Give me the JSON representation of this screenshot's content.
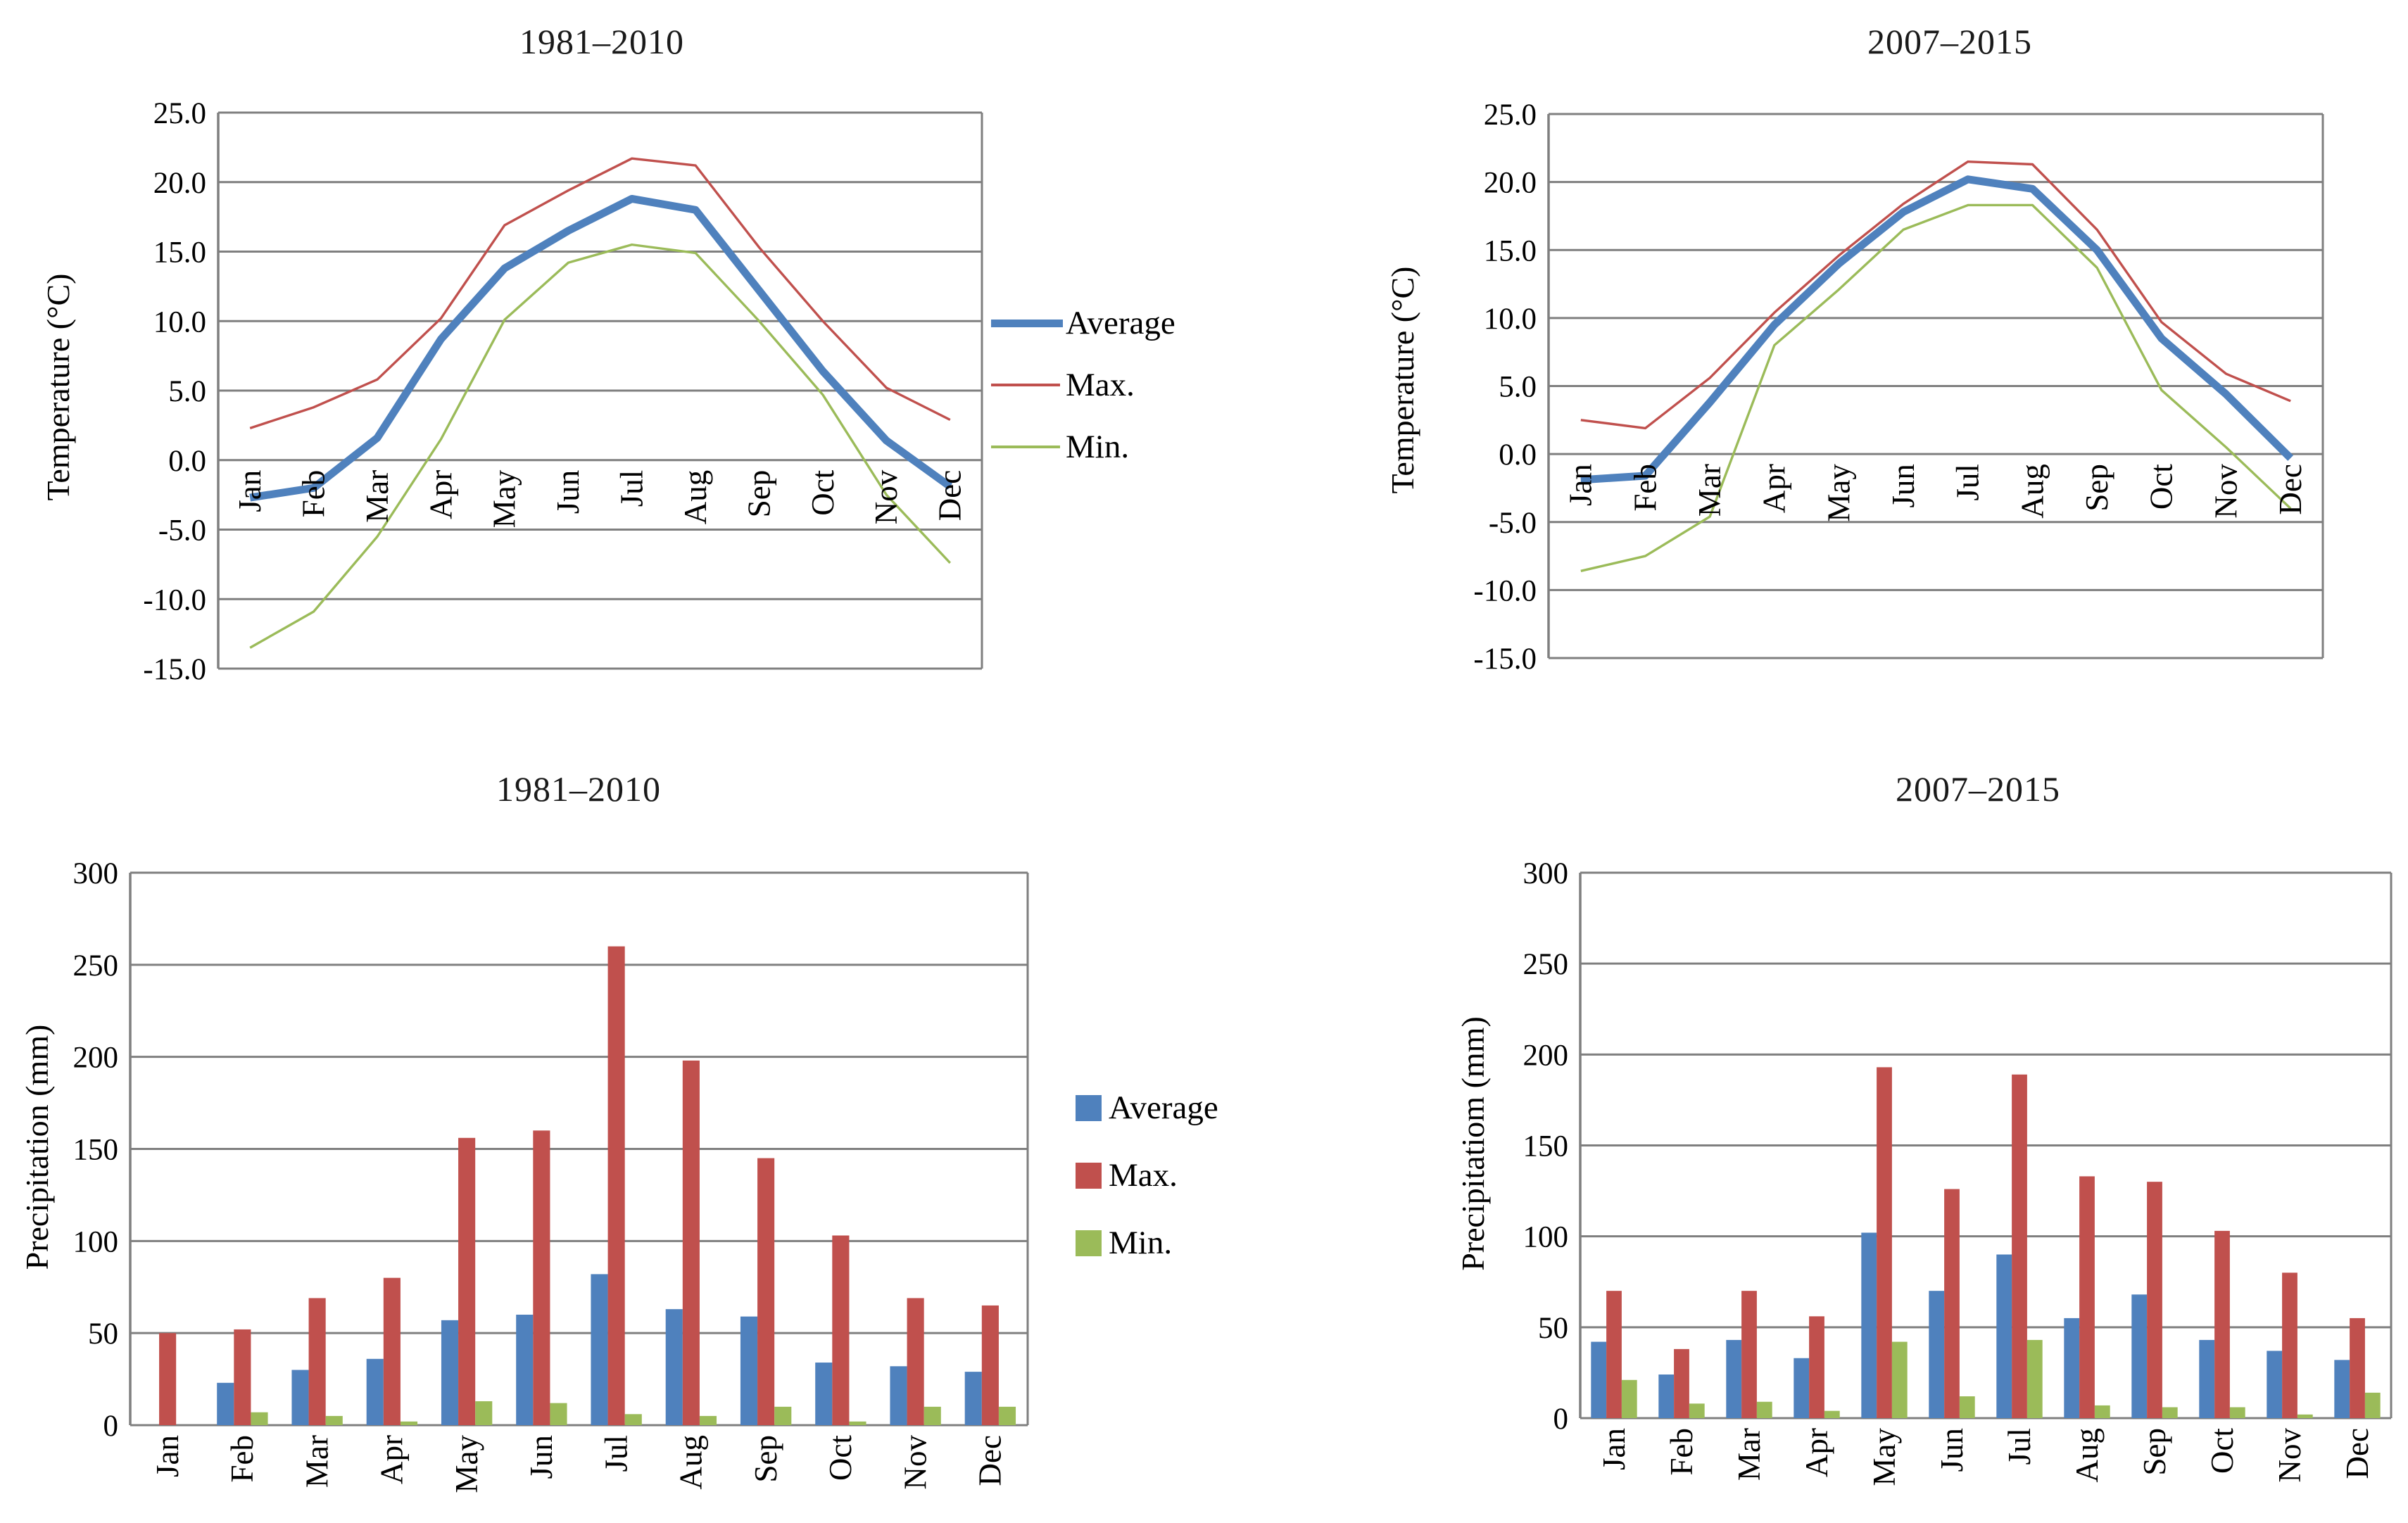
{
  "page": {
    "background": "#FFFFFF"
  },
  "colors": {
    "average": "#4F81BD",
    "max": "#C0504D",
    "min": "#9BBB59",
    "grid": "#7F7F7F",
    "text": "#000000"
  },
  "legends": {
    "temperature": {
      "items": [
        {
          "label": "Average",
          "series": "average",
          "style": "thick-line"
        },
        {
          "label": "Max.",
          "series": "max",
          "style": "thin-line"
        },
        {
          "label": "Min.",
          "series": "min",
          "style": "thin-line"
        }
      ]
    },
    "precipitation": {
      "items": [
        {
          "label": "Average",
          "series": "average",
          "style": "square"
        },
        {
          "label": "Max.",
          "series": "max",
          "style": "square"
        },
        {
          "label": "Min.",
          "series": "min",
          "style": "square"
        }
      ]
    }
  },
  "chart_data": [
    {
      "id": "temp-1981",
      "type": "line",
      "title": "1981–2010",
      "ylabel": "Temperature (°C)",
      "ylim": [
        -15,
        25
      ],
      "ytick_step": 5,
      "ytick_labels": [
        "25.0",
        "20.0",
        "15.0",
        "10.0",
        "5.0",
        "0.0",
        "-5.0",
        "-10.0",
        "-15.0"
      ],
      "categories": [
        "Jan",
        "Feb",
        "Mar",
        "Apr",
        "May",
        "Jun",
        "Jul",
        "Aug",
        "Sep",
        "Oct",
        "Nov",
        "Dec"
      ],
      "grid": true,
      "legend_position": "right",
      "series": [
        {
          "name": "Average",
          "color": "average",
          "thick": true,
          "values": [
            -2.7,
            -2.0,
            1.6,
            8.7,
            13.8,
            16.5,
            18.8,
            18.0,
            12.2,
            6.4,
            1.4,
            -1.9
          ]
        },
        {
          "name": "Max.",
          "color": "max",
          "values": [
            2.3,
            3.8,
            5.8,
            10.2,
            16.9,
            19.4,
            21.7,
            21.2,
            15.3,
            10.0,
            5.2,
            2.9
          ]
        },
        {
          "name": "Min.",
          "color": "min",
          "values": [
            -13.5,
            -10.9,
            -5.5,
            1.5,
            10.1,
            14.2,
            15.5,
            14.9,
            10.0,
            4.7,
            -2.5,
            -7.4
          ]
        }
      ]
    },
    {
      "id": "temp-2007",
      "type": "line",
      "title": "2007–2015",
      "ylabel": "Temperature (°C)",
      "ylim": [
        -15,
        25
      ],
      "ytick_step": 5,
      "ytick_labels": [
        "25.0",
        "20.0",
        "15.0",
        "10.0",
        "5.0",
        "0.0",
        "-5.0",
        "-10.0",
        "-15.0"
      ],
      "categories": [
        "Jan",
        "Feb",
        "Mar",
        "Apr",
        "May",
        "Jun",
        "Jul",
        "Aug",
        "Sep",
        "Oct",
        "Nov",
        "Dec"
      ],
      "grid": true,
      "legend_position": "none",
      "series": [
        {
          "name": "Average",
          "color": "average",
          "thick": true,
          "values": [
            -1.9,
            -1.6,
            3.8,
            9.5,
            14.0,
            17.8,
            20.2,
            19.5,
            15.0,
            8.5,
            4.4,
            -0.3
          ]
        },
        {
          "name": "Max.",
          "color": "max",
          "values": [
            2.5,
            1.9,
            5.6,
            10.4,
            14.6,
            18.4,
            21.5,
            21.3,
            16.5,
            9.7,
            5.9,
            3.9
          ]
        },
        {
          "name": "Min.",
          "color": "min",
          "values": [
            -8.6,
            -7.5,
            -4.6,
            8.0,
            12.1,
            16.5,
            18.3,
            18.3,
            13.7,
            4.7,
            0.5,
            -4.0
          ]
        }
      ]
    },
    {
      "id": "prec-1981",
      "type": "bar",
      "title": "1981–2010",
      "ylabel": "Precipitation (mm)",
      "ylim": [
        0,
        300
      ],
      "ytick_step": 50,
      "ytick_labels": [
        "300",
        "250",
        "200",
        "150",
        "100",
        "50",
        "0"
      ],
      "categories": [
        "Jan",
        "Feb",
        "Mar",
        "Apr",
        "May",
        "Jun",
        "Jul",
        "Aug",
        "Sep",
        "Oct",
        "Nov",
        "Dec"
      ],
      "grid": true,
      "legend_position": "right",
      "series": [
        {
          "name": "Average",
          "color": "average",
          "values": [
            0,
            23,
            30,
            36,
            57,
            60,
            82,
            63,
            59,
            34,
            32,
            29
          ]
        },
        {
          "name": "Max.",
          "color": "max",
          "values": [
            50,
            52,
            69,
            80,
            156,
            160,
            260,
            198,
            145,
            103,
            69,
            65
          ]
        },
        {
          "name": "Min.",
          "color": "min",
          "values": [
            0,
            7,
            5,
            2,
            13,
            12,
            6,
            5,
            10,
            2,
            10,
            10
          ]
        }
      ]
    },
    {
      "id": "prec-2007",
      "type": "bar",
      "title": "2007–2015",
      "ylabel": "Precipitatiom (mm)",
      "ylim": [
        0,
        300
      ],
      "ytick_step": 50,
      "ytick_labels": [
        "300",
        "250",
        "200",
        "150",
        "100",
        "50",
        "0"
      ],
      "categories": [
        "Jan",
        "Feb",
        "Mar",
        "Apr",
        "May",
        "Jun",
        "Jul",
        "Aug",
        "Sep",
        "Oct",
        "Nov",
        "Dec"
      ],
      "grid": true,
      "legend_position": "none",
      "series": [
        {
          "name": "Average",
          "color": "average",
          "values": [
            42,
            24,
            43,
            33,
            102,
            70,
            90,
            55,
            68,
            43,
            37,
            32
          ]
        },
        {
          "name": "Max.",
          "color": "max",
          "values": [
            70,
            38,
            70,
            56,
            193,
            126,
            189,
            133,
            130,
            103,
            80,
            55
          ]
        },
        {
          "name": "Min.",
          "color": "min",
          "values": [
            21,
            8,
            9,
            4,
            42,
            12,
            43,
            7,
            6,
            6,
            2,
            14
          ]
        }
      ]
    }
  ]
}
